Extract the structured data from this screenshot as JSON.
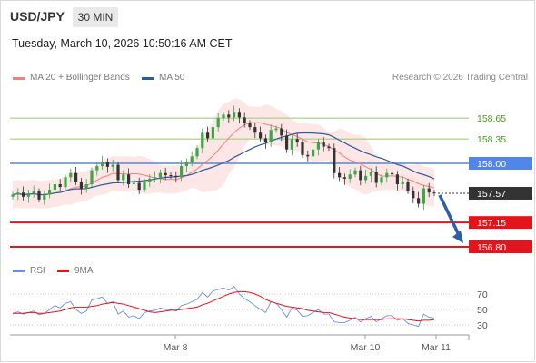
{
  "header": {
    "symbol": "USD/JPY",
    "timeframe": "30 MIN",
    "timestamp": "Tuesday, March 10, 2026 10:50:16 AM CET"
  },
  "legend": {
    "ma20_label": "MA 20 + Bollinger Bands",
    "ma50_label": "MA 50",
    "credit": "Research © 2026 Trading Central"
  },
  "rsi_legend": {
    "rsi_label": "RSI",
    "ma_label": "9MA"
  },
  "colors": {
    "ma20": "#f08080",
    "ma50": "#2e5c9a",
    "bollinger_fill": "#fde2e2",
    "bull": "#3aa845",
    "bear": "#333333",
    "resistance": "#a4cd85",
    "resistance_text": "#4a9a1c",
    "pivot": "#4f86e8",
    "support": "#e3141b",
    "last_price": "#333333",
    "arrow": "#2e5ea8",
    "rsi": "#6a8fe0",
    "rsi_ma": "#e3141b"
  },
  "chart_data": [
    {
      "type": "candlestick",
      "x": [
        "Mar 8",
        "Mar 10",
        "Mar 11"
      ],
      "ylim": [
        156.6,
        159.1
      ],
      "levels": [
        {
          "value": "158.65",
          "kind": "resistance"
        },
        {
          "value": "158.35",
          "kind": "resistance"
        },
        {
          "value": "158.00",
          "kind": "pivot"
        },
        {
          "value": "157.57",
          "kind": "last"
        },
        {
          "value": "157.15",
          "kind": "support"
        },
        {
          "value": "156.80",
          "kind": "support"
        }
      ],
      "forecast_arrow": {
        "from": 157.57,
        "to": 156.8
      },
      "closes": [
        157.55,
        157.58,
        157.52,
        157.57,
        157.6,
        157.48,
        157.55,
        157.62,
        157.7,
        157.66,
        157.8,
        157.86,
        157.74,
        157.64,
        157.7,
        157.9,
        157.96,
        158.02,
        157.95,
        157.98,
        157.76,
        157.84,
        157.7,
        157.72,
        157.62,
        157.74,
        157.78,
        157.8,
        157.86,
        157.83,
        157.82,
        157.8,
        157.96,
        158.02,
        158.1,
        158.22,
        158.44,
        158.36,
        158.52,
        158.65,
        158.7,
        158.66,
        158.74,
        158.66,
        158.58,
        158.52,
        158.44,
        158.36,
        158.3,
        158.48,
        158.5,
        158.4,
        158.2,
        158.35,
        158.3,
        158.12,
        158.1,
        158.2,
        158.3,
        158.24,
        158.22,
        157.86,
        157.8,
        157.78,
        157.84,
        157.9,
        157.76,
        157.82,
        157.88,
        157.72,
        157.8,
        157.86,
        157.84,
        157.7,
        157.74,
        157.6,
        157.5,
        157.42,
        157.64,
        157.58,
        157.57
      ]
    },
    {
      "type": "line",
      "ylabel": "RSI",
      "ticks": [
        "70",
        "50",
        "30"
      ],
      "ylim": [
        18,
        82
      ],
      "series": [
        {
          "name": "RSI",
          "values": [
            45,
            47,
            44,
            46,
            48,
            43,
            45,
            50,
            55,
            52,
            58,
            60,
            50,
            45,
            48,
            62,
            64,
            66,
            58,
            60,
            44,
            48,
            40,
            42,
            38,
            46,
            48,
            49,
            52,
            50,
            50,
            48,
            55,
            57,
            60,
            63,
            72,
            66,
            74,
            76,
            78,
            75,
            80,
            70,
            64,
            60,
            55,
            50,
            46,
            60,
            58,
            50,
            40,
            52,
            49,
            41,
            42,
            46,
            50,
            44,
            44,
            34,
            33,
            33,
            36,
            40,
            34,
            38,
            41,
            34,
            38,
            42,
            42,
            36,
            38,
            32,
            30,
            28,
            44,
            40,
            39
          ]
        },
        {
          "name": "9MA",
          "values": [
            45,
            45,
            45,
            46,
            46,
            45,
            45,
            46,
            47,
            48,
            50,
            52,
            53,
            53,
            53,
            54,
            55,
            57,
            58,
            59,
            58,
            57,
            55,
            53,
            51,
            49,
            47,
            46,
            47,
            48,
            49,
            49,
            50,
            51,
            52,
            53,
            56,
            58,
            61,
            64,
            67,
            70,
            72,
            73,
            73,
            72,
            70,
            67,
            63,
            60,
            58,
            56,
            54,
            53,
            52,
            51,
            49,
            48,
            47,
            46,
            46,
            44,
            42,
            40,
            39,
            38,
            37,
            37,
            37,
            37,
            37,
            38,
            38,
            38,
            38,
            37,
            36,
            35,
            36,
            36,
            37
          ]
        }
      ]
    }
  ]
}
